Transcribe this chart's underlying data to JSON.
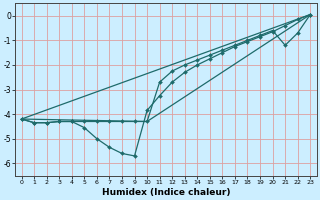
{
  "xlabel": "Humidex (Indice chaleur)",
  "background_color": "#cceeff",
  "grid_color": "#dda0a0",
  "line_color": "#1e6b6b",
  "xlim": [
    -0.5,
    23.5
  ],
  "ylim": [
    -6.5,
    0.5
  ],
  "xticks": [
    0,
    1,
    2,
    3,
    4,
    5,
    6,
    7,
    8,
    9,
    10,
    11,
    12,
    13,
    14,
    15,
    16,
    17,
    18,
    19,
    20,
    21,
    22,
    23
  ],
  "yticks": [
    0,
    -1,
    -2,
    -3,
    -4,
    -5,
    -6
  ],
  "series": [
    {
      "x": [
        0,
        1,
        2,
        3,
        4,
        5,
        6,
        7,
        8,
        9,
        10,
        11,
        12,
        13,
        14,
        15,
        16,
        17,
        18,
        19,
        20,
        21,
        22,
        23
      ],
      "y": [
        -4.2,
        -4.35,
        -4.35,
        -4.3,
        -4.3,
        -4.55,
        -5.0,
        -5.35,
        -5.6,
        -5.7,
        -3.85,
        -3.25,
        -2.7,
        -2.3,
        -2.0,
        -1.75,
        -1.5,
        -1.25,
        -1.05,
        -0.85,
        -0.65,
        -0.4,
        -0.15,
        0.05
      ],
      "marker": true
    },
    {
      "x": [
        0,
        1,
        2,
        3,
        4,
        5,
        6,
        7,
        8,
        9,
        10,
        11,
        12,
        13,
        14,
        15,
        16,
        17,
        18,
        19,
        20,
        21,
        22,
        23
      ],
      "y": [
        -4.2,
        -4.35,
        -4.35,
        -4.3,
        -4.3,
        -4.3,
        -4.3,
        -4.3,
        -4.3,
        -4.3,
        -4.3,
        -2.7,
        -2.25,
        -2.0,
        -1.8,
        -1.6,
        -1.4,
        -1.2,
        -1.0,
        -0.8,
        -0.6,
        -1.2,
        -0.7,
        0.05
      ],
      "marker": true
    },
    {
      "x": [
        0,
        23
      ],
      "y": [
        -4.2,
        0.05
      ],
      "marker": false
    },
    {
      "x": [
        0,
        10,
        23
      ],
      "y": [
        -4.2,
        -4.3,
        0.05
      ],
      "marker": false
    }
  ]
}
